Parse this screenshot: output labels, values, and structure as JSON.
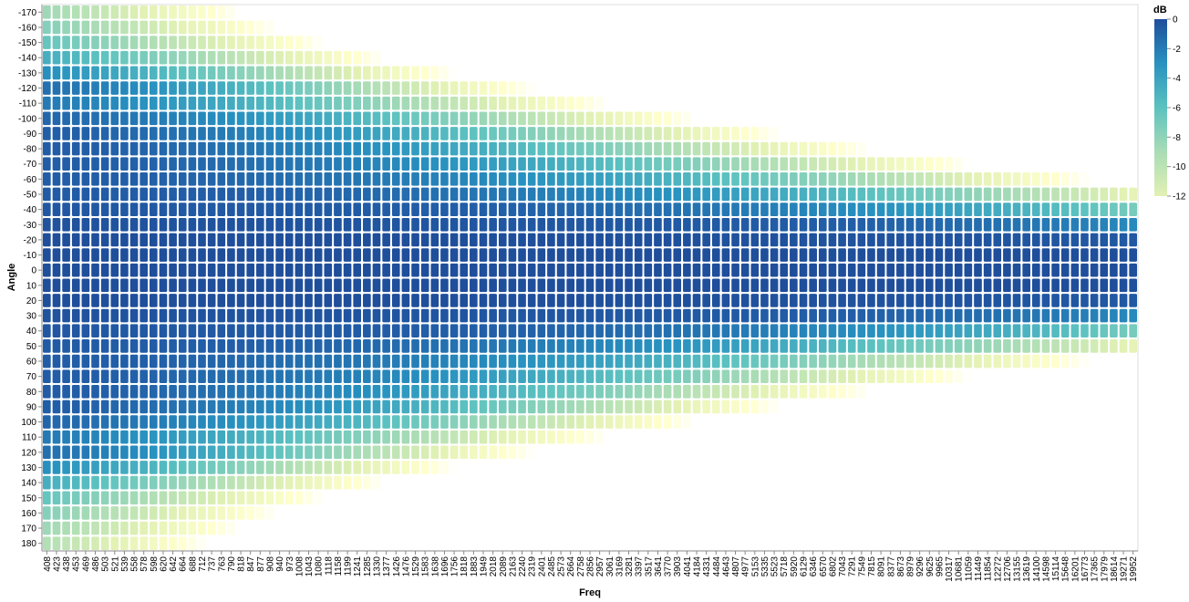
{
  "chart_data": {
    "type": "heatmap",
    "xlabel": "Freq",
    "ylabel": "Angle",
    "x": [
      408,
      423,
      438,
      453,
      469,
      486,
      503,
      521,
      539,
      558,
      578,
      598,
      620,
      642,
      664,
      688,
      712,
      737,
      763,
      790,
      818,
      847,
      877,
      908,
      940,
      973,
      1008,
      1043,
      1080,
      1118,
      1158,
      1199,
      1241,
      1285,
      1330,
      1377,
      1426,
      1476,
      1529,
      1583,
      1638,
      1696,
      1756,
      1818,
      1883,
      1949,
      2018,
      2089,
      2163,
      2240,
      2319,
      2401,
      2485,
      2573,
      2664,
      2758,
      2856,
      2957,
      3061,
      3169,
      3281,
      3397,
      3517,
      3641,
      3770,
      3903,
      4041,
      4184,
      4331,
      4484,
      4643,
      4807,
      4977,
      5153,
      5335,
      5523,
      5718,
      5920,
      6129,
      6346,
      6570,
      6802,
      7043,
      7291,
      7549,
      7815,
      8091,
      8377,
      8673,
      8979,
      9296,
      9625,
      9965,
      10317,
      10681,
      11059,
      11449,
      11854,
      12272,
      12706,
      13155,
      13619,
      14100,
      14598,
      15114,
      15648,
      16201,
      16773,
      17365,
      17979,
      18614,
      19271,
      19952
    ],
    "y": [
      -170,
      -160,
      -150,
      -140,
      -130,
      -120,
      -110,
      -100,
      -90,
      -80,
      -70,
      -60,
      -50,
      -40,
      -30,
      -20,
      -10,
      0,
      10,
      20,
      30,
      40,
      50,
      60,
      70,
      80,
      90,
      100,
      110,
      120,
      130,
      140,
      150,
      160,
      170,
      180
    ],
    "value_field": "dB",
    "color_scale": {
      "domain": [
        -12,
        0
      ],
      "palette": "yellow-green-blue"
    },
    "legend": {
      "title": "dB",
      "position": "top-right",
      "ticks": [
        0,
        -2,
        -4,
        -6,
        -8,
        -10,
        -12
      ]
    },
    "grid": false
  }
}
